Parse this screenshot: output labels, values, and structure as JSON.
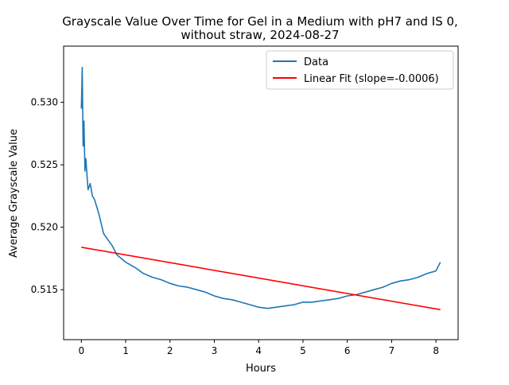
{
  "chart_data": {
    "type": "line",
    "title_line1": "Grayscale Value Over Time for Gel in a Medium with pH7 and IS 0,",
    "title_line2": "without straw, 2024-08-27",
    "xlabel": "Hours",
    "ylabel": "Average Grayscale Value",
    "xlim": [
      -0.4,
      8.5
    ],
    "ylim": [
      0.511,
      0.5345
    ],
    "xticks": [
      0,
      1,
      2,
      3,
      4,
      5,
      6,
      7,
      8
    ],
    "yticks": [
      0.515,
      0.52,
      0.525,
      0.53
    ],
    "ytick_labels": [
      "0.515",
      "0.520",
      "0.525",
      "0.530"
    ],
    "grid": false,
    "legend_placement": "top-right",
    "series": [
      {
        "name": "Data",
        "color": "#1f77b4",
        "x": [
          0.0,
          0.02,
          0.04,
          0.06,
          0.08,
          0.1,
          0.15,
          0.2,
          0.25,
          0.3,
          0.4,
          0.5,
          0.6,
          0.7,
          0.8,
          0.9,
          1.0,
          1.2,
          1.4,
          1.6,
          1.8,
          2.0,
          2.2,
          2.4,
          2.6,
          2.8,
          3.0,
          3.2,
          3.4,
          3.6,
          3.8,
          4.0,
          4.2,
          4.4,
          4.6,
          4.8,
          5.0,
          5.2,
          5.4,
          5.6,
          5.8,
          6.0,
          6.2,
          6.4,
          6.6,
          6.8,
          7.0,
          7.2,
          7.4,
          7.6,
          7.8,
          8.0,
          8.1
        ],
        "y": [
          0.5295,
          0.5328,
          0.5265,
          0.5285,
          0.5245,
          0.5255,
          0.523,
          0.5235,
          0.5225,
          0.5222,
          0.521,
          0.5195,
          0.519,
          0.5185,
          0.5178,
          0.5175,
          0.5172,
          0.5168,
          0.5163,
          0.516,
          0.5158,
          0.5155,
          0.5153,
          0.5152,
          0.515,
          0.5148,
          0.5145,
          0.5143,
          0.5142,
          0.514,
          0.5138,
          0.5136,
          0.5135,
          0.5136,
          0.5137,
          0.5138,
          0.514,
          0.514,
          0.5141,
          0.5142,
          0.5143,
          0.5145,
          0.5146,
          0.5148,
          0.515,
          0.5152,
          0.5155,
          0.5157,
          0.5158,
          0.516,
          0.5163,
          0.5165,
          0.5172
        ]
      },
      {
        "name": "Linear Fit (slope=-0.0006)",
        "color": "#ff0000",
        "x": [
          0.0,
          8.1
        ],
        "y": [
          0.5184,
          0.5134
        ]
      }
    ]
  }
}
